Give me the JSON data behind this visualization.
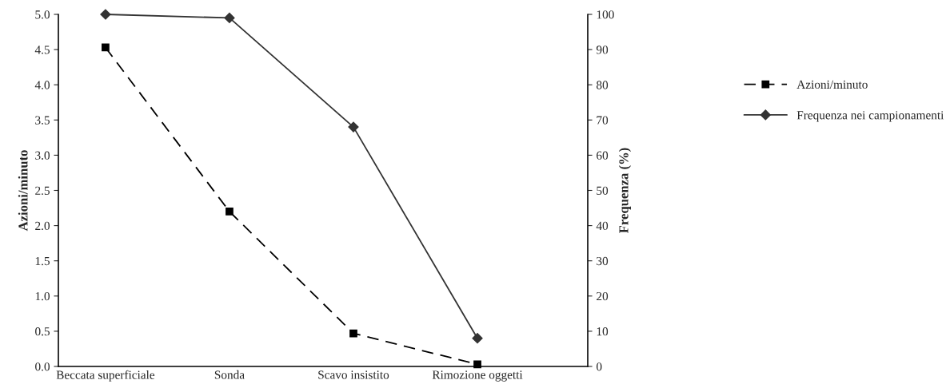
{
  "chart_data": {
    "type": "line",
    "categories": [
      "Beccata superficiale",
      "Sonda",
      "Scavo insistito",
      "Rimozione oggetti"
    ],
    "ylabel": "Azioni/minuto",
    "y2label": "Frequenza (%)",
    "series": [
      {
        "name": "Azioni/minuto",
        "color": "#000000",
        "values": [
          4.53,
          2.2,
          0.47,
          0.03
        ],
        "marker": "square",
        "line_style": "dashed"
      },
      {
        "name": "Frequenza nei campionamenti",
        "color": "#333333",
        "values": [
          100,
          99,
          68,
          8
        ],
        "marker": "diamond",
        "line_style": "solid",
        "axis": "y2"
      }
    ],
    "ylim": [
      0,
      5
    ],
    "yticks": [
      {
        "value": 0,
        "label": "0.0"
      },
      {
        "value": 0.5,
        "label": "0.5"
      },
      {
        "value": 1,
        "label": "1.0"
      },
      {
        "value": 1.5,
        "label": "1.5"
      },
      {
        "value": 2,
        "label": "2.0"
      },
      {
        "value": 2.5,
        "label": "2.5"
      },
      {
        "value": 3,
        "label": "3.0"
      },
      {
        "value": 3.5,
        "label": "3.5"
      },
      {
        "value": 4,
        "label": "4.0"
      },
      {
        "value": 4.5,
        "label": "4.5"
      },
      {
        "value": 5,
        "label": "5.0"
      }
    ],
    "y2lim": [
      0,
      100
    ],
    "y2ticks": [
      0,
      10,
      20,
      30,
      40,
      50,
      60,
      70,
      80,
      90,
      100
    ],
    "grid": false,
    "legend": "right"
  }
}
